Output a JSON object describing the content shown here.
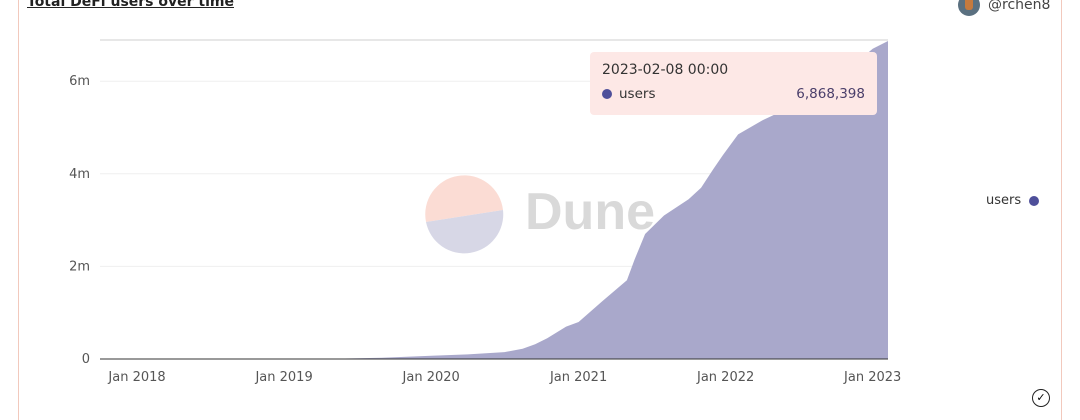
{
  "header": {
    "title": "Total DeFi users over time",
    "author": "@rchen8"
  },
  "watermark": "Dune",
  "tooltip": {
    "date": "2023-02-08 00:00",
    "series": "users",
    "value": "6,868,398"
  },
  "colors": {
    "area": "#a9a8cb",
    "series_dot": "#4e4f9a",
    "tooltip_bg": "#fde8e6",
    "border": "#f2c9bd"
  },
  "chart_data": {
    "type": "area",
    "title": "Total DeFi users over time",
    "legend": {
      "entries": [
        "users"
      ],
      "placement": "right"
    },
    "grid": true,
    "ylim": [
      0,
      6868398
    ],
    "y_ticks": [
      {
        "v": 0,
        "label": "0"
      },
      {
        "v": 2000000,
        "label": "2m"
      },
      {
        "v": 4000000,
        "label": "4m"
      },
      {
        "v": 6000000,
        "label": "6m"
      }
    ],
    "x_ticks": [
      {
        "d": "2018-01-01",
        "label": "Jan 2018"
      },
      {
        "d": "2019-01-01",
        "label": "Jan 2019"
      },
      {
        "d": "2020-01-01",
        "label": "Jan 2020"
      },
      {
        "d": "2021-01-01",
        "label": "Jan 2021"
      },
      {
        "d": "2022-01-01",
        "label": "Jan 2022"
      },
      {
        "d": "2023-01-01",
        "label": "Jan 2023"
      }
    ],
    "xlim": [
      "2017-10-01",
      "2023-02-08"
    ],
    "series": [
      {
        "name": "users",
        "points": [
          [
            "2017-10-01",
            0
          ],
          [
            "2018-06-01",
            1000
          ],
          [
            "2019-01-01",
            5000
          ],
          [
            "2019-06-01",
            10000
          ],
          [
            "2019-09-01",
            25000
          ],
          [
            "2020-01-01",
            70000
          ],
          [
            "2020-04-01",
            100000
          ],
          [
            "2020-07-01",
            150000
          ],
          [
            "2020-08-15",
            220000
          ],
          [
            "2020-09-15",
            320000
          ],
          [
            "2020-10-15",
            450000
          ],
          [
            "2020-12-01",
            700000
          ],
          [
            "2021-01-01",
            800000
          ],
          [
            "2021-03-01",
            1250000
          ],
          [
            "2021-05-01",
            1700000
          ],
          [
            "2021-05-20",
            2150000
          ],
          [
            "2021-06-15",
            2700000
          ],
          [
            "2021-08-01",
            3100000
          ],
          [
            "2021-10-01",
            3450000
          ],
          [
            "2021-11-01",
            3700000
          ],
          [
            "2021-12-01",
            4100000
          ],
          [
            "2021-12-25",
            4400000
          ],
          [
            "2022-02-01",
            4850000
          ],
          [
            "2022-04-01",
            5150000
          ],
          [
            "2022-06-01",
            5400000
          ],
          [
            "2022-09-01",
            5800000
          ],
          [
            "2022-11-01",
            6250000
          ],
          [
            "2023-01-01",
            6700000
          ],
          [
            "2023-02-08",
            6868398
          ]
        ]
      }
    ]
  }
}
